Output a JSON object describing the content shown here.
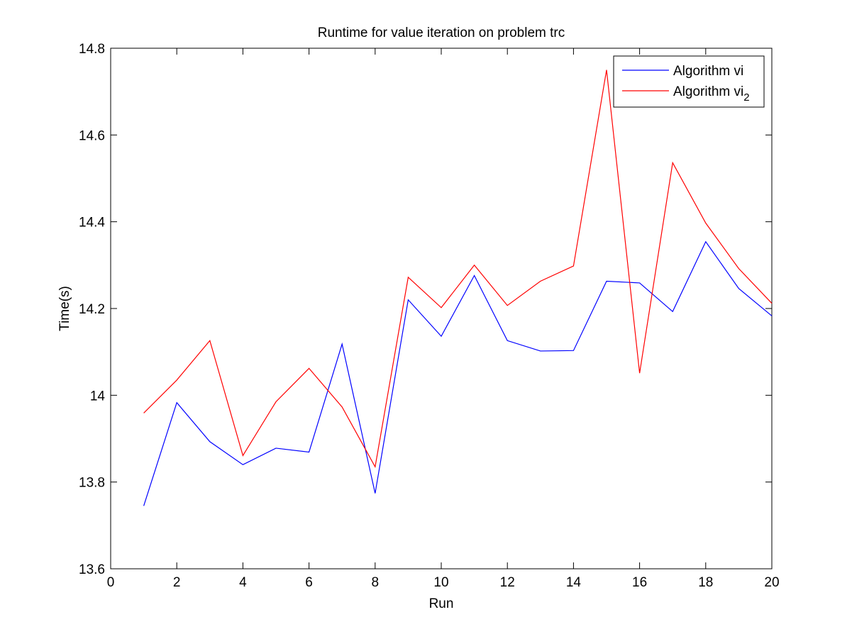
{
  "chart_data": {
    "type": "line",
    "title": "Runtime for value iteration on problem trc",
    "xlabel": "Run",
    "ylabel": "Time(s)",
    "xlim": [
      0,
      20
    ],
    "ylim": [
      13.6,
      14.8
    ],
    "x_ticks": [
      "0",
      "2",
      "4",
      "6",
      "8",
      "10",
      "12",
      "14",
      "16",
      "18",
      "20"
    ],
    "y_ticks": [
      "13.6",
      "13.8",
      "14",
      "14.2",
      "14.4",
      "14.6",
      "14.8"
    ],
    "grid": false,
    "legend_position": "top-right",
    "x": [
      1,
      2,
      3,
      4,
      5,
      6,
      7,
      8,
      9,
      10,
      11,
      12,
      13,
      14,
      15,
      16,
      17,
      18,
      19,
      20
    ],
    "series": [
      {
        "name": "Algorithm vi",
        "legend_base": "Algorithm vi",
        "legend_sub": "",
        "color": "#0000ff",
        "values": [
          13.745,
          13.983,
          13.893,
          13.84,
          13.878,
          13.869,
          14.118,
          13.774,
          14.22,
          14.136,
          14.276,
          14.126,
          14.102,
          14.103,
          14.263,
          14.259,
          14.193,
          14.354,
          14.246,
          14.183
        ]
      },
      {
        "name": "Algorithm vi2",
        "legend_base": "Algorithm vi",
        "legend_sub": "2",
        "color": "#ff0000",
        "values": [
          13.959,
          14.035,
          14.126,
          13.861,
          13.985,
          14.062,
          13.973,
          13.835,
          14.272,
          14.202,
          14.3,
          14.207,
          14.263,
          14.298,
          14.75,
          14.051,
          14.536,
          14.397,
          14.292,
          14.212
        ]
      }
    ]
  }
}
